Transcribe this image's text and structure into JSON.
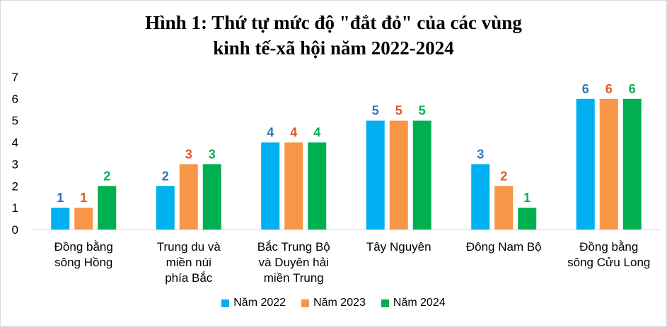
{
  "chart_data": {
    "type": "bar",
    "title_lines": [
      "Hình 1: Thứ tự mức độ \"đắt đỏ\" của các vùng",
      "kinh tế-xã hội năm 2022-2024"
    ],
    "categories": [
      [
        "Đồng bằng",
        "sông Hồng"
      ],
      [
        "Trung du và",
        "miền núi",
        "phía Bắc"
      ],
      [
        "Bắc Trung Bộ",
        "và Duyên hải",
        "miền Trung"
      ],
      [
        "Tây Nguyên"
      ],
      [
        "Đông Nam Bộ"
      ],
      [
        "Đồng bằng",
        "sông Cửu Long"
      ]
    ],
    "series": [
      {
        "name": "Năm 2022",
        "color": "#00B0F0",
        "label_color": "#2E75B6",
        "values": [
          1,
          2,
          4,
          5,
          3,
          6
        ]
      },
      {
        "name": "Năm 2023",
        "color": "#F79646",
        "label_color": "#E0572A",
        "values": [
          1,
          3,
          4,
          5,
          2,
          6
        ]
      },
      {
        "name": "Năm 2024",
        "color": "#00B050",
        "label_color": "#00B050",
        "values": [
          2,
          3,
          4,
          5,
          1,
          6
        ]
      }
    ],
    "ylim": [
      0,
      7
    ],
    "yticks": [
      0,
      1,
      2,
      3,
      4,
      5,
      6,
      7
    ],
    "grid": false,
    "legend_position": "bottom",
    "data_labels": true
  }
}
